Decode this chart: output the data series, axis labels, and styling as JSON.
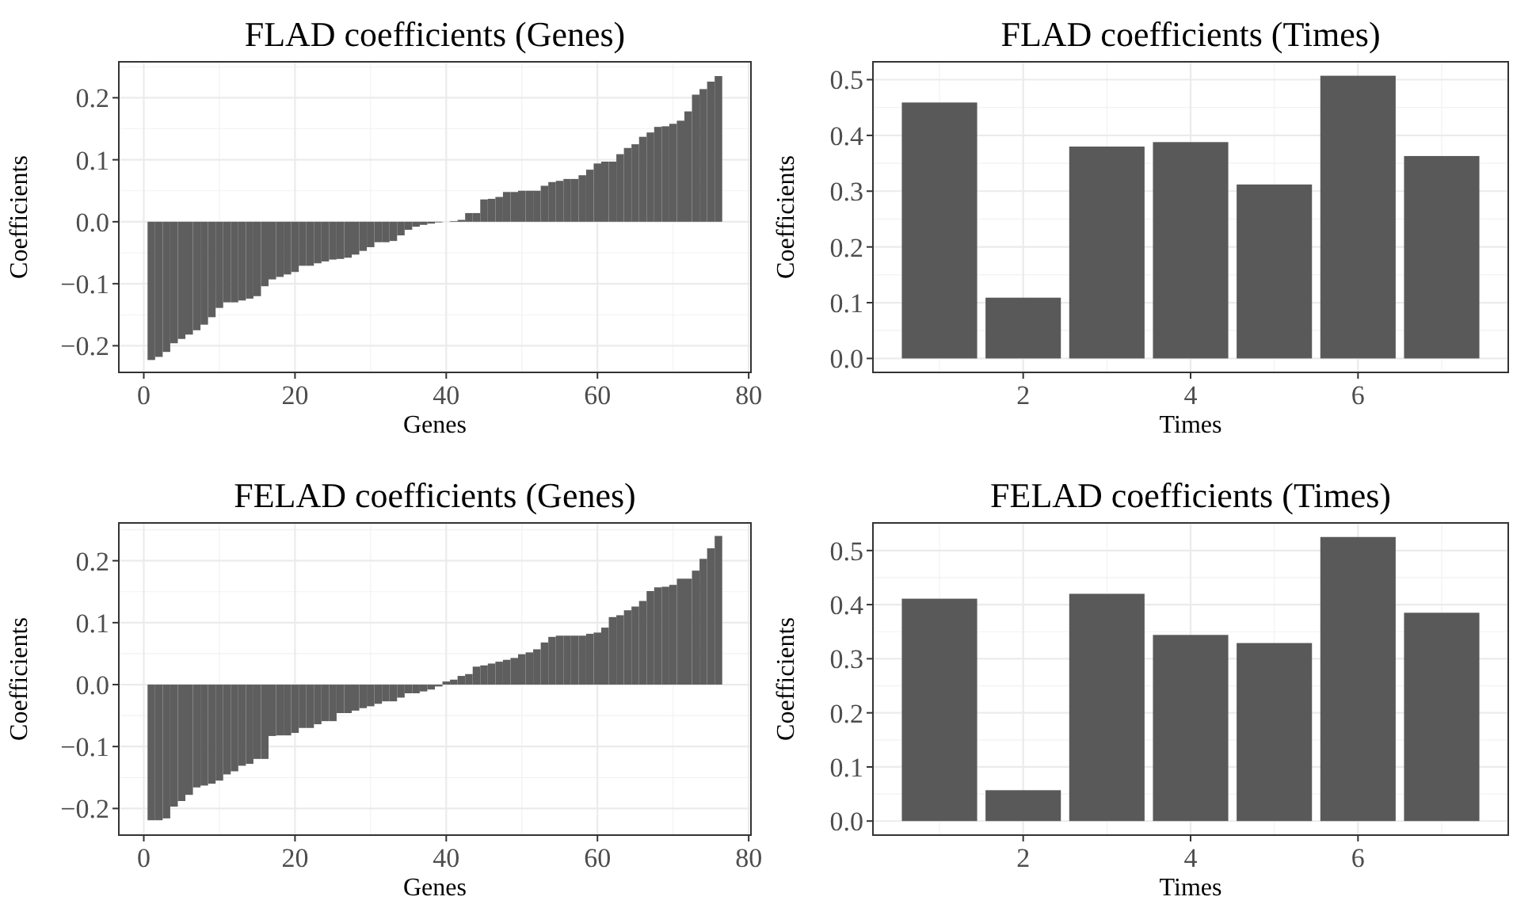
{
  "chart_data": [
    {
      "type": "bar",
      "title": "FLAD coefficients (Genes)",
      "xlabel": "Genes",
      "ylabel": "Coefficients",
      "grid": true,
      "xlim": [
        -3.3,
        80.3
      ],
      "xticks": [
        0,
        20,
        40,
        60,
        80
      ],
      "ylim": [
        -0.243,
        0.258
      ],
      "yticks": [
        {
          "value": -0.2,
          "label": "−0.2"
        },
        {
          "value": -0.1,
          "label": "−0.1"
        },
        {
          "value": 0,
          "label": "0.0"
        },
        0.1,
        0.2
      ],
      "color": "#5e5e5e",
      "x": [
        1,
        2,
        3,
        4,
        5,
        6,
        7,
        8,
        9,
        10,
        11,
        12,
        13,
        14,
        15,
        16,
        17,
        18,
        19,
        20,
        21,
        22,
        23,
        24,
        25,
        26,
        27,
        28,
        29,
        30,
        31,
        32,
        33,
        34,
        35,
        36,
        37,
        38,
        39,
        40,
        41,
        42,
        43,
        44,
        45,
        46,
        47,
        48,
        49,
        50,
        51,
        52,
        53,
        54,
        55,
        56,
        57,
        58,
        59,
        60,
        61,
        62,
        63,
        64,
        65,
        66,
        67,
        68,
        69,
        70,
        71,
        72,
        73,
        74,
        75,
        76
      ],
      "values": [
        -0.223,
        -0.218,
        -0.21,
        -0.196,
        -0.189,
        -0.182,
        -0.175,
        -0.166,
        -0.154,
        -0.139,
        -0.13,
        -0.13,
        -0.127,
        -0.124,
        -0.12,
        -0.104,
        -0.093,
        -0.089,
        -0.085,
        -0.081,
        -0.071,
        -0.071,
        -0.067,
        -0.064,
        -0.061,
        -0.06,
        -0.058,
        -0.053,
        -0.047,
        -0.041,
        -0.033,
        -0.033,
        -0.031,
        -0.022,
        -0.013,
        -0.008,
        -0.005,
        -0.003,
        -0.001,
        0,
        0.001,
        0.003,
        0.014,
        0.014,
        0.036,
        0.037,
        0.04,
        0.048,
        0.048,
        0.05,
        0.05,
        0.05,
        0.058,
        0.064,
        0.066,
        0.069,
        0.069,
        0.075,
        0.084,
        0.094,
        0.097,
        0.097,
        0.109,
        0.119,
        0.125,
        0.137,
        0.144,
        0.153,
        0.154,
        0.158,
        0.163,
        0.178,
        0.205,
        0.214,
        0.226,
        0.235
      ]
    },
    {
      "type": "bar",
      "title": "FLAD coefficients (Times)",
      "xlabel": "Times",
      "ylabel": "Coefficients",
      "grid": true,
      "xlim": [
        0.205,
        7.795
      ],
      "xticks": [
        2,
        4,
        6
      ],
      "ylim": [
        -0.025,
        0.532
      ],
      "yticks": [
        {
          "value": 0,
          "label": "0.0"
        },
        0.1,
        0.2,
        0.3,
        0.4,
        0.5
      ],
      "color": "#595959",
      "x": [
        1,
        2,
        3,
        4,
        5,
        6,
        7
      ],
      "values": [
        0.459,
        0.109,
        0.38,
        0.388,
        0.312,
        0.507,
        0.363
      ]
    },
    {
      "type": "bar",
      "title": "FELAD coefficients (Genes)",
      "xlabel": "Genes",
      "ylabel": "Coefficients",
      "grid": true,
      "xlim": [
        -3.3,
        80.3
      ],
      "xticks": [
        0,
        20,
        40,
        60,
        80
      ],
      "ylim": [
        -0.243,
        0.261
      ],
      "yticks": [
        {
          "value": -0.2,
          "label": "−0.2"
        },
        {
          "value": -0.1,
          "label": "−0.1"
        },
        {
          "value": 0,
          "label": "0.0"
        },
        0.1,
        0.2
      ],
      "color": "#5e5e5e",
      "x": [
        1,
        2,
        3,
        4,
        5,
        6,
        7,
        8,
        9,
        10,
        11,
        12,
        13,
        14,
        15,
        16,
        17,
        18,
        19,
        20,
        21,
        22,
        23,
        24,
        25,
        26,
        27,
        28,
        29,
        30,
        31,
        32,
        33,
        34,
        35,
        36,
        37,
        38,
        39,
        40,
        41,
        42,
        43,
        44,
        45,
        46,
        47,
        48,
        49,
        50,
        51,
        52,
        53,
        54,
        55,
        56,
        57,
        58,
        59,
        60,
        61,
        62,
        63,
        64,
        65,
        66,
        67,
        68,
        69,
        70,
        71,
        72,
        73,
        74,
        75,
        76
      ],
      "values": [
        -0.219,
        -0.219,
        -0.216,
        -0.197,
        -0.188,
        -0.178,
        -0.166,
        -0.163,
        -0.16,
        -0.155,
        -0.145,
        -0.14,
        -0.131,
        -0.128,
        -0.12,
        -0.12,
        -0.083,
        -0.082,
        -0.082,
        -0.078,
        -0.07,
        -0.07,
        -0.064,
        -0.059,
        -0.059,
        -0.046,
        -0.046,
        -0.042,
        -0.038,
        -0.035,
        -0.031,
        -0.027,
        -0.027,
        -0.021,
        -0.014,
        -0.014,
        -0.011,
        -0.008,
        -0.003,
        0.005,
        0.008,
        0.014,
        0.017,
        0.029,
        0.031,
        0.034,
        0.037,
        0.04,
        0.043,
        0.049,
        0.052,
        0.057,
        0.068,
        0.077,
        0.079,
        0.079,
        0.079,
        0.079,
        0.082,
        0.084,
        0.092,
        0.109,
        0.112,
        0.12,
        0.126,
        0.135,
        0.151,
        0.157,
        0.158,
        0.161,
        0.171,
        0.171,
        0.184,
        0.203,
        0.22,
        0.24
      ]
    },
    {
      "type": "bar",
      "title": "FELAD coefficients (Times)",
      "xlabel": "Times",
      "ylabel": "Coefficients",
      "grid": true,
      "xlim": [
        0.205,
        7.795
      ],
      "xticks": [
        2,
        4,
        6
      ],
      "ylim": [
        -0.026,
        0.551
      ],
      "yticks": [
        {
          "value": 0,
          "label": "0.0"
        },
        0.1,
        0.2,
        0.3,
        0.4,
        0.5
      ],
      "color": "#595959",
      "x": [
        1,
        2,
        3,
        4,
        5,
        6,
        7
      ],
      "values": [
        0.411,
        0.057,
        0.42,
        0.344,
        0.329,
        0.525,
        0.385
      ]
    }
  ]
}
